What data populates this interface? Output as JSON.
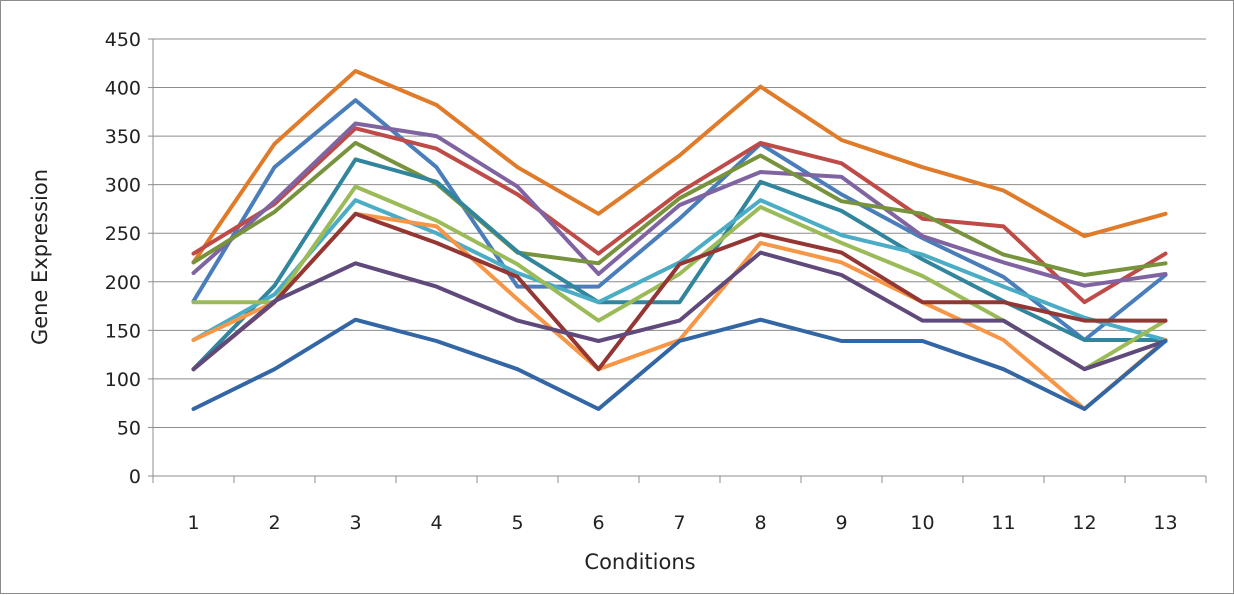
{
  "chart_data": {
    "type": "line",
    "title": "",
    "xlabel": "Conditions",
    "ylabel": "Gene Expression",
    "x": [
      1,
      2,
      3,
      4,
      5,
      6,
      7,
      8,
      9,
      10,
      11,
      12,
      13
    ],
    "ylim": [
      0,
      450
    ],
    "yticks": [
      0,
      50,
      100,
      150,
      200,
      250,
      300,
      350,
      400,
      450
    ],
    "grid": true,
    "legend": "none",
    "series": [
      {
        "color": "#E07B2A",
        "values": [
          220,
          342,
          417,
          382,
          318,
          270,
          330,
          401,
          346,
          318,
          294,
          247,
          270
        ]
      },
      {
        "color": "#4A7EBB",
        "values": [
          180,
          318,
          387,
          318,
          195,
          195,
          265,
          342,
          290,
          245,
          205,
          140,
          207
        ]
      },
      {
        "color": "#BE4B48",
        "values": [
          229,
          280,
          358,
          337,
          290,
          229,
          292,
          343,
          322,
          265,
          257,
          179,
          229
        ]
      },
      {
        "color": "#8064A2",
        "values": [
          209,
          283,
          363,
          350,
          298,
          208,
          279,
          313,
          308,
          247,
          220,
          196,
          208
        ]
      },
      {
        "color": "#77933C",
        "values": [
          220,
          272,
          343,
          301,
          230,
          219,
          286,
          330,
          283,
          270,
          228,
          207,
          219
        ]
      },
      {
        "color": "#31859C",
        "values": [
          110,
          196,
          326,
          303,
          231,
          179,
          179,
          303,
          273,
          223,
          180,
          140,
          140
        ]
      },
      {
        "color": "#4BACC6",
        "values": [
          140,
          187,
          284,
          250,
          209,
          179,
          220,
          284,
          248,
          228,
          195,
          163,
          140
        ]
      },
      {
        "color": "#9BBB59",
        "values": [
          179,
          179,
          298,
          263,
          218,
          160,
          208,
          277,
          240,
          206,
          160,
          110,
          160
        ]
      },
      {
        "color": "#F79646",
        "values": [
          140,
          179,
          270,
          257,
          182,
          110,
          140,
          240,
          220,
          179,
          140,
          69,
          140
        ]
      },
      {
        "color": "#943634",
        "values": [
          110,
          179,
          270,
          240,
          205,
          110,
          218,
          249,
          230,
          179,
          179,
          160,
          160
        ]
      },
      {
        "color": "#604A7B",
        "values": [
          110,
          180,
          219,
          195,
          160,
          139,
          160,
          230,
          207,
          160,
          160,
          110,
          139
        ]
      },
      {
        "color": "#3366A4",
        "values": [
          69,
          110,
          161,
          139,
          110,
          69,
          139,
          161,
          139,
          139,
          110,
          69,
          139
        ]
      }
    ]
  }
}
